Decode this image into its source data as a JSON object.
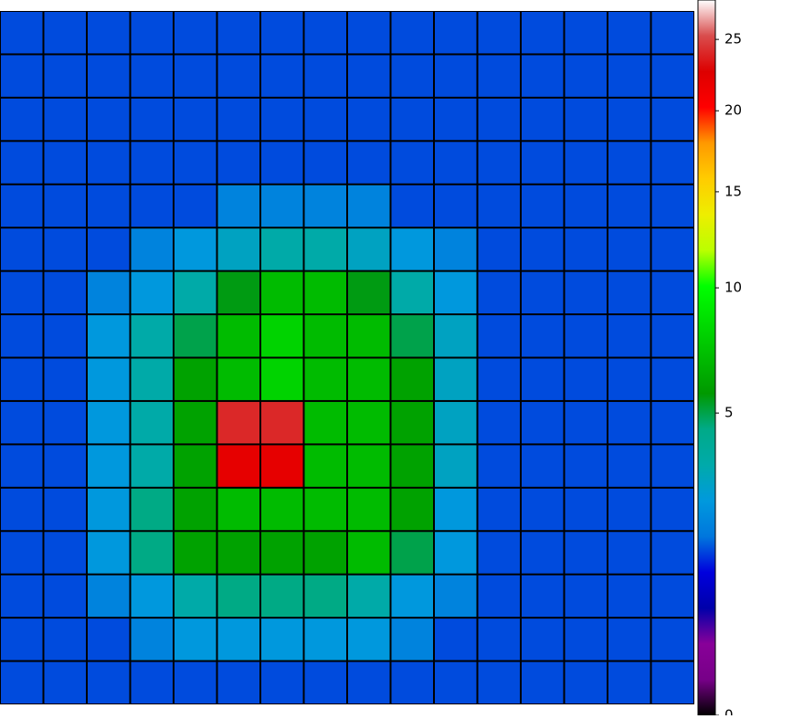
{
  "chart_data": {
    "type": "heatmap",
    "colormap": "nipy_spectral",
    "color_scale": "sqrt",
    "clim": [
      0,
      28
    ],
    "cticks": [
      0,
      5,
      10,
      15,
      20,
      25
    ],
    "values": [
      [
        1.5,
        1.5,
        1.5,
        1.5,
        1.5,
        1.5,
        1.5,
        1.5,
        1.5,
        1.5,
        1.5,
        1.5,
        1.5,
        1.5,
        1.5,
        1.5
      ],
      [
        1.5,
        1.5,
        1.5,
        1.5,
        1.5,
        1.5,
        1.5,
        1.5,
        1.5,
        1.5,
        1.5,
        1.5,
        1.5,
        1.5,
        1.5,
        1.5
      ],
      [
        1.5,
        1.5,
        1.5,
        1.5,
        1.5,
        1.5,
        1.5,
        1.5,
        1.5,
        1.5,
        1.5,
        1.5,
        1.5,
        1.5,
        1.5,
        1.5
      ],
      [
        1.5,
        1.5,
        1.5,
        1.5,
        1.5,
        1.5,
        1.5,
        1.5,
        1.5,
        1.5,
        1.5,
        1.5,
        1.5,
        1.5,
        1.5,
        1.5
      ],
      [
        1.5,
        1.5,
        1.5,
        1.5,
        1.5,
        2,
        2,
        2,
        2,
        1.5,
        1.5,
        1.5,
        1.5,
        1.5,
        1.5,
        1.5
      ],
      [
        1.5,
        1.5,
        1.5,
        2,
        2.5,
        3,
        3.5,
        3.5,
        3,
        2.5,
        2,
        1.5,
        1.5,
        1.5,
        1.5,
        1.5
      ],
      [
        1.5,
        1.5,
        2,
        2.5,
        3.5,
        5.5,
        7,
        7,
        5.5,
        3.5,
        2.5,
        1.5,
        1.5,
        1.5,
        1.5,
        1.5
      ],
      [
        1.5,
        1.5,
        2.5,
        3.5,
        5,
        7,
        8,
        7,
        7,
        5,
        3,
        1.5,
        1.5,
        1.5,
        1.5,
        1.5
      ],
      [
        1.5,
        1.5,
        2.5,
        3.5,
        6,
        7,
        8,
        7,
        7,
        6,
        3,
        1.5,
        1.5,
        1.5,
        1.5,
        1.5
      ],
      [
        1.5,
        1.5,
        2.5,
        3.5,
        6,
        24,
        24,
        7,
        7,
        6,
        3,
        1.5,
        1.5,
        1.5,
        1.5,
        1.5
      ],
      [
        1.5,
        1.5,
        2.5,
        3.5,
        6,
        22,
        22,
        7,
        7,
        6,
        3,
        1.5,
        1.5,
        1.5,
        1.5,
        1.5
      ],
      [
        1.5,
        1.5,
        2.5,
        4.5,
        6,
        7,
        7,
        7,
        7,
        6,
        2.5,
        1.5,
        1.5,
        1.5,
        1.5,
        1.5
      ],
      [
        1.5,
        1.5,
        2.5,
        4.5,
        6,
        6,
        6,
        6,
        7,
        5,
        2.5,
        1.5,
        1.5,
        1.5,
        1.5,
        1.5
      ],
      [
        1.5,
        1.5,
        2,
        2.5,
        3.5,
        4.5,
        4.5,
        4.5,
        3.5,
        2.5,
        2,
        1.5,
        1.5,
        1.5,
        1.5,
        1.5
      ],
      [
        1.5,
        1.5,
        1.5,
        2,
        2.5,
        2.5,
        2.5,
        2.5,
        2.5,
        2,
        1.5,
        1.5,
        1.5,
        1.5,
        1.5,
        1.5
      ],
      [
        1.5,
        1.5,
        1.5,
        1.5,
        1.5,
        1.5,
        1.5,
        1.5,
        1.5,
        1.5,
        1.5,
        1.5,
        1.5,
        1.5,
        1.5,
        1.5
      ]
    ]
  }
}
